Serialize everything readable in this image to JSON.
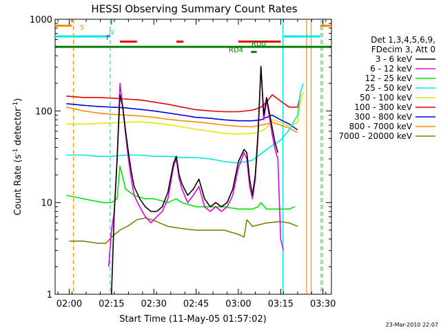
{
  "chart_data": {
    "type": "line",
    "title": "HESSI Observing Summary Count Rates",
    "xlabel": "Start Time (11-May-05 01:57:02)",
    "ylabel_main": "Count Rate (s",
    "ylabel_sup1": "-1",
    "ylabel_mid": " detector",
    "ylabel_sup2": "-1",
    "ylabel_end": ")",
    "footer": "23-Mar-2010 22:07",
    "y_log": true,
    "ylim": [
      1,
      1000
    ],
    "xlim_minutes": [
      115,
      213
    ],
    "x_ticks": [
      {
        "label": "02:00",
        "minutes": 120
      },
      {
        "label": "02:15",
        "minutes": 135
      },
      {
        "label": "02:30",
        "minutes": 150
      },
      {
        "label": "02:45",
        "minutes": 165
      },
      {
        "label": "03:00",
        "minutes": 180
      },
      {
        "label": "03:15",
        "minutes": 195
      },
      {
        "label": "03:30",
        "minutes": 210
      }
    ],
    "y_ticks": [
      {
        "label": "1",
        "value": 1
      },
      {
        "label": "10",
        "value": 10
      },
      {
        "label": "100",
        "value": 100
      },
      {
        "label": "1000",
        "value": 1000
      }
    ],
    "legend_header": [
      "Det 1,3,4,5,6,9,",
      "FDecim 3, Att 0"
    ],
    "series": [
      {
        "name": "3 - 6 keV",
        "color": "#000000",
        "x": [
          135,
          136,
          137,
          138,
          139,
          140,
          141,
          142,
          143,
          145,
          147,
          149,
          151,
          153,
          155,
          157,
          158,
          159,
          160,
          162,
          164,
          166,
          168,
          170,
          172,
          174,
          176,
          178,
          180,
          182,
          183,
          184,
          185,
          186,
          187,
          188,
          189,
          190,
          191,
          192,
          193,
          194
        ],
        "y": [
          1,
          8,
          30,
          150,
          110,
          60,
          35,
          22,
          15,
          11,
          9,
          8,
          8,
          9,
          13,
          27,
          32,
          20,
          16,
          12,
          14,
          18,
          11,
          9,
          10,
          9,
          10,
          14,
          28,
          38,
          35,
          18,
          12,
          20,
          60,
          300,
          90,
          140,
          95,
          65,
          45,
          35
        ]
      },
      {
        "name": "6 - 12 keV",
        "color": "#e600e6",
        "x": [
          134,
          135,
          136,
          137,
          138,
          139,
          140,
          141,
          142,
          143,
          145,
          147,
          149,
          151,
          153,
          155,
          157,
          158,
          159,
          160,
          162,
          164,
          166,
          168,
          170,
          172,
          174,
          176,
          178,
          180,
          182,
          183,
          184,
          185,
          186,
          187,
          188,
          189,
          190,
          191,
          192,
          193,
          194,
          195,
          196
        ],
        "y": [
          2,
          5,
          8,
          30,
          200,
          110,
          55,
          30,
          18,
          12,
          9,
          7,
          6,
          7,
          8,
          11,
          25,
          30,
          18,
          14,
          10,
          12,
          15,
          9,
          8,
          9,
          8,
          9,
          12,
          24,
          35,
          30,
          15,
          11,
          18,
          55,
          310,
          80,
          130,
          85,
          55,
          38,
          30,
          4,
          3
        ]
      },
      {
        "name": "12 - 25 keV",
        "color": "#00e600",
        "x": [
          119,
          125,
          132,
          135,
          137,
          138,
          140,
          143,
          147,
          150,
          155,
          158,
          160,
          165,
          170,
          175,
          180,
          185,
          187,
          188,
          190,
          195,
          198,
          200
        ],
        "y": [
          12,
          11,
          10,
          10,
          11,
          25,
          14,
          12,
          11,
          11,
          10,
          11,
          10,
          9,
          9,
          9,
          8.5,
          8.5,
          9,
          10,
          8.5,
          8.5,
          8.5,
          9
        ]
      },
      {
        "name": "25 - 50 keV",
        "color": "#00e6e6",
        "x": [
          119,
          125,
          130,
          135,
          140,
          145,
          150,
          155,
          160,
          165,
          170,
          175,
          180,
          185,
          188,
          190,
          192,
          195,
          198,
          201,
          202,
          203
        ],
        "y": [
          33,
          33,
          32,
          32,
          33,
          33,
          32,
          32,
          31,
          31,
          30,
          28,
          27,
          29,
          34,
          38,
          42,
          48,
          62,
          90,
          160,
          200
        ]
      },
      {
        "name": "50 - 100 keV",
        "color": "#e6e600",
        "x": [
          119,
          125,
          130,
          135,
          140,
          145,
          150,
          155,
          160,
          165,
          170,
          175,
          180,
          185,
          188,
          190,
          192,
          195,
          198,
          201,
          202,
          203
        ],
        "y": [
          72,
          72,
          73,
          74,
          75,
          76,
          74,
          71,
          67,
          63,
          60,
          57,
          56,
          57,
          60,
          65,
          80,
          75,
          68,
          75,
          120,
          160
        ]
      },
      {
        "name": "100 - 300 keV",
        "color": "#e60000",
        "x": [
          119,
          125,
          130,
          135,
          140,
          145,
          150,
          155,
          160,
          165,
          170,
          175,
          180,
          185,
          188,
          190,
          192,
          195,
          198,
          201,
          202
        ],
        "y": [
          145,
          140,
          140,
          138,
          135,
          132,
          125,
          118,
          110,
          103,
          100,
          98,
          98,
          102,
          110,
          125,
          150,
          128,
          110,
          110,
          150
        ]
      },
      {
        "name": "300 - 800 keV",
        "color": "#0000e6",
        "x": [
          119,
          125,
          130,
          135,
          140,
          145,
          150,
          155,
          160,
          165,
          170,
          175,
          180,
          185,
          188,
          190,
          192,
          195,
          198,
          201
        ],
        "y": [
          120,
          115,
          112,
          110,
          108,
          104,
          100,
          95,
          90,
          85,
          83,
          80,
          78,
          78,
          80,
          85,
          90,
          80,
          72,
          62
        ]
      },
      {
        "name": "800 - 7000 keV",
        "color": "#ff8c00",
        "x": [
          119,
          125,
          130,
          135,
          140,
          145,
          150,
          155,
          160,
          165,
          170,
          175,
          180,
          185,
          188,
          190,
          192,
          195,
          198,
          201
        ],
        "y": [
          110,
          100,
          95,
          92,
          90,
          88,
          85,
          81,
          78,
          76,
          73,
          70,
          68,
          67,
          70,
          72,
          75,
          70,
          65,
          58
        ]
      },
      {
        "name": "7000 - 20000 keV",
        "color": "#808000",
        "x": [
          120,
          125,
          130,
          133,
          135,
          138,
          141,
          144,
          147,
          150,
          152,
          155,
          160,
          165,
          170,
          175,
          180,
          182,
          183,
          185,
          190,
          195,
          198,
          201
        ],
        "y": [
          3.8,
          3.8,
          3.6,
          3.6,
          4.2,
          5.0,
          5.6,
          6.5,
          6.8,
          6.4,
          6.0,
          5.5,
          5.2,
          5.0,
          5.0,
          5.0,
          4.5,
          4.2,
          6.5,
          5.5,
          6.0,
          6.2,
          6.0,
          5.5
        ]
      }
    ],
    "flag_bars": [
      {
        "label": "S",
        "color": "#ff8c00",
        "value": 850,
        "segments": [
          [
            115,
            121
          ],
          [
            209,
            213
          ]
        ]
      },
      {
        "label": "N",
        "color": "#00e6e6",
        "value": 650,
        "segments": [
          [
            115,
            134.5
          ],
          [
            196,
            209
          ]
        ]
      },
      {
        "label": "F",
        "color": "#e60000",
        "value": 570,
        "segments": [
          [
            138,
            144
          ],
          [
            158,
            160.5
          ],
          [
            180,
            195
          ]
        ]
      },
      {
        "label": "RD0",
        "color": "#008000",
        "value": 500,
        "segments": [
          [
            115,
            213
          ]
        ]
      },
      {
        "label": "RD4",
        "color": "#008000",
        "value": 440,
        "segments": [
          [
            184.5,
            186.5
          ]
        ]
      }
    ],
    "vlines": [
      {
        "minutes": 121.5,
        "color": "#ff8c00",
        "dashed": true
      },
      {
        "minutes": 134.5,
        "color": "#00e6e6",
        "dashed": true
      },
      {
        "minutes": 195.8,
        "color": "#00e6e6",
        "dashed": false
      },
      {
        "minutes": 204.2,
        "color": "#ff8c00",
        "dashed": false
      },
      {
        "minutes": 205.8,
        "color": "#ff8c00",
        "dashed": false
      },
      {
        "minutes": 209.3,
        "color": "#00e6e6",
        "dashed": true
      },
      {
        "minutes": 209.8,
        "color": "#ff8c00",
        "dashed": true
      }
    ]
  }
}
